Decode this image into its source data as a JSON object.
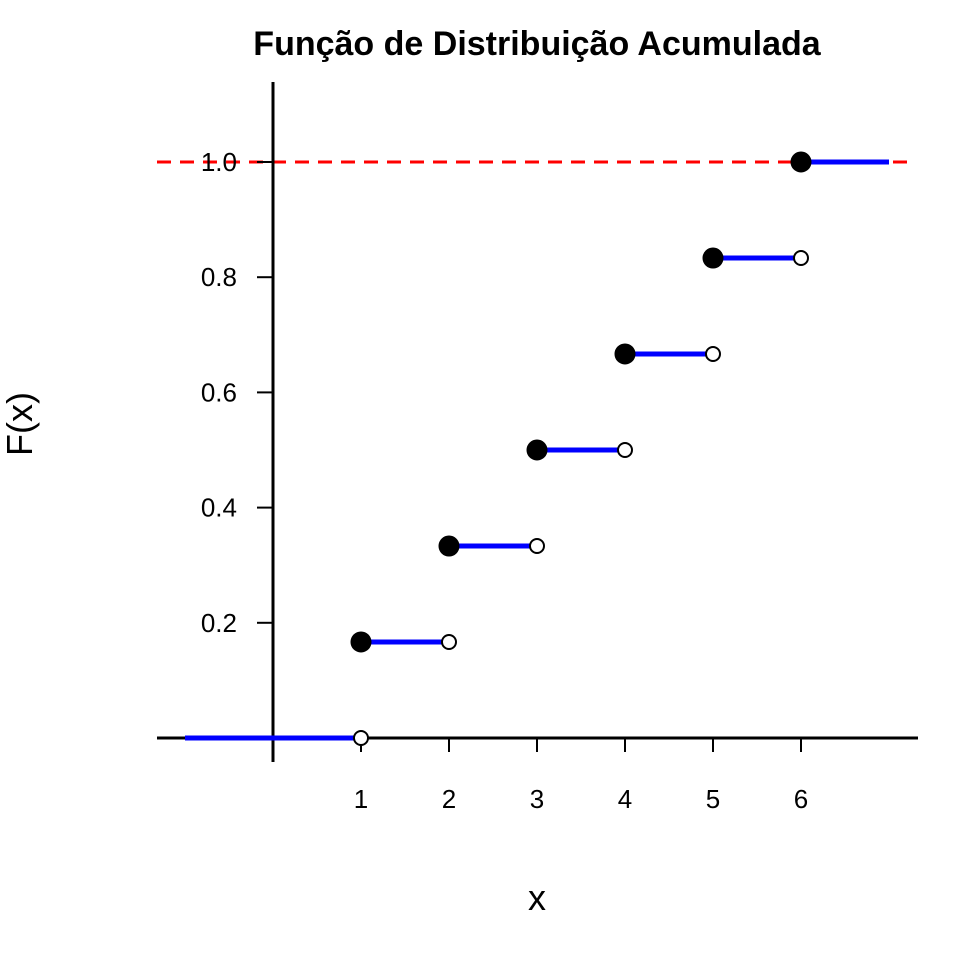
{
  "chart_data": {
    "type": "step",
    "title": "Função de Distribuição Acumulada",
    "xlabel": "x",
    "ylabel": "F(x)",
    "x_ticks": [
      1,
      2,
      3,
      4,
      5,
      6
    ],
    "y_ticks": [
      "0.2",
      "0.4",
      "0.6",
      "0.8",
      "1.0"
    ],
    "xlim": [
      -1.0,
      7.2
    ],
    "ylim": [
      0,
      1.0
    ],
    "steps": [
      {
        "x_start": -1.0,
        "x_end": 1,
        "y": 0
      },
      {
        "x_start": 1,
        "x_end": 2,
        "y": 0.1667
      },
      {
        "x_start": 2,
        "x_end": 3,
        "y": 0.3333
      },
      {
        "x_start": 3,
        "x_end": 4,
        "y": 0.5
      },
      {
        "x_start": 4,
        "x_end": 5,
        "y": 0.6667
      },
      {
        "x_start": 5,
        "x_end": 6,
        "y": 0.8333
      },
      {
        "x_start": 6,
        "x_end": 7,
        "y": 1.0
      }
    ],
    "closed_points": [
      {
        "x": 1,
        "y": 0.1667
      },
      {
        "x": 2,
        "y": 0.3333
      },
      {
        "x": 3,
        "y": 0.5
      },
      {
        "x": 4,
        "y": 0.6667
      },
      {
        "x": 5,
        "y": 0.8333
      },
      {
        "x": 6,
        "y": 1.0
      }
    ],
    "open_points": [
      {
        "x": 1,
        "y": 0
      },
      {
        "x": 2,
        "y": 0.1667
      },
      {
        "x": 3,
        "y": 0.3333
      },
      {
        "x": 4,
        "y": 0.5
      },
      {
        "x": 5,
        "y": 0.6667
      },
      {
        "x": 6,
        "y": 0.8333
      }
    ],
    "reference_line": {
      "y": 1.0,
      "style": "dashed",
      "color": "#ff0000"
    },
    "step_color": "#0000ff",
    "point_color": "#000000",
    "grid": false,
    "legend": "none"
  }
}
